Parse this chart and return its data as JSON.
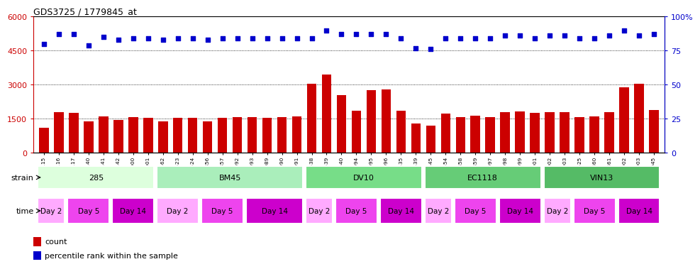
{
  "title": "GDS3725 / 1779845_at",
  "bar_color": "#cc0000",
  "dot_color": "#0000cc",
  "ylim_left": [
    0,
    6000
  ],
  "ylim_right": [
    0,
    100
  ],
  "yticks_left": [
    0,
    1500,
    3000,
    4500,
    6000
  ],
  "yticks_right": [
    0,
    25,
    50,
    75,
    100
  ],
  "ytick_labels_left": [
    "0",
    "1500",
    "3000",
    "4500",
    "6000"
  ],
  "ytick_labels_right": [
    "0",
    "25",
    "50",
    "75",
    "100%"
  ],
  "samples": [
    "GSM291115",
    "GSM291116",
    "GSM291117",
    "GSM291140",
    "GSM291141",
    "GSM291142",
    "GSM291000",
    "GSM291001",
    "GSM291462",
    "GSM291523",
    "GSM291524",
    "GSM296856",
    "GSM296857",
    "GSM290992",
    "GSM290993",
    "GSM290989",
    "GSM290990",
    "GSM290991",
    "GSM291538",
    "GSM291539",
    "GSM291540",
    "GSM290994",
    "GSM290995",
    "GSM290996",
    "GSM291435",
    "GSM291439",
    "GSM291445",
    "GSM291554",
    "GSM296858",
    "GSM296859",
    "GSM290997",
    "GSM290998",
    "GSM290999",
    "GSM290901",
    "GSM290902",
    "GSM290903",
    "GSM291525",
    "GSM296860",
    "GSM296861",
    "GSM291002",
    "GSM291003",
    "GSM292045"
  ],
  "counts": [
    1100,
    1800,
    1750,
    1380,
    1620,
    1450,
    1560,
    1540,
    1400,
    1530,
    1530,
    1400,
    1530,
    1560,
    1590,
    1540,
    1560,
    1600,
    3050,
    3450,
    2550,
    1850,
    2750,
    2800,
    1870,
    1280,
    1200,
    1720,
    1590,
    1640,
    1590,
    1800,
    1830,
    1760,
    1800,
    1800,
    1590,
    1610,
    1800,
    2900,
    3050,
    1900
  ],
  "percentiles": [
    80,
    87,
    87,
    79,
    85,
    83,
    84,
    84,
    83,
    84,
    84,
    83,
    84,
    84,
    84,
    84,
    84,
    84,
    84,
    90,
    87,
    87,
    87,
    87,
    84,
    77,
    76,
    84,
    84,
    84,
    84,
    86,
    86,
    84,
    86,
    86,
    84,
    84,
    86,
    90,
    86,
    87
  ],
  "strain_blocks": [
    {
      "label": "285",
      "start": 0,
      "end": 8,
      "color": "#ddffdd"
    },
    {
      "label": "BM45",
      "start": 8,
      "end": 18,
      "color": "#aaeebb"
    },
    {
      "label": "DV10",
      "start": 18,
      "end": 26,
      "color": "#77dd88"
    },
    {
      "label": "EC1118",
      "start": 26,
      "end": 34,
      "color": "#66cc77"
    },
    {
      "label": "VIN13",
      "start": 34,
      "end": 42,
      "color": "#55bb66"
    }
  ],
  "time_blocks": [
    {
      "label": "Day 2",
      "start": 0,
      "end": 2,
      "color": "#ffaaff"
    },
    {
      "label": "Day 5",
      "start": 2,
      "end": 5,
      "color": "#ee44ee"
    },
    {
      "label": "Day 14",
      "start": 5,
      "end": 8,
      "color": "#cc00cc"
    },
    {
      "label": "Day 2",
      "start": 8,
      "end": 11,
      "color": "#ffaaff"
    },
    {
      "label": "Day 5",
      "start": 11,
      "end": 14,
      "color": "#ee44ee"
    },
    {
      "label": "Day 14",
      "start": 14,
      "end": 18,
      "color": "#cc00cc"
    },
    {
      "label": "Day 2",
      "start": 18,
      "end": 20,
      "color": "#ffaaff"
    },
    {
      "label": "Day 5",
      "start": 20,
      "end": 23,
      "color": "#ee44ee"
    },
    {
      "label": "Day 14",
      "start": 23,
      "end": 26,
      "color": "#cc00cc"
    },
    {
      "label": "Day 2",
      "start": 26,
      "end": 28,
      "color": "#ffaaff"
    },
    {
      "label": "Day 5",
      "start": 28,
      "end": 31,
      "color": "#ee44ee"
    },
    {
      "label": "Day 14",
      "start": 31,
      "end": 34,
      "color": "#cc00cc"
    },
    {
      "label": "Day 2",
      "start": 34,
      "end": 36,
      "color": "#ffaaff"
    },
    {
      "label": "Day 5",
      "start": 36,
      "end": 39,
      "color": "#ee44ee"
    },
    {
      "label": "Day 14",
      "start": 39,
      "end": 42,
      "color": "#cc00cc"
    }
  ],
  "legend_count_color": "#cc0000",
  "legend_pct_color": "#0000cc",
  "background_color": "#ffffff"
}
